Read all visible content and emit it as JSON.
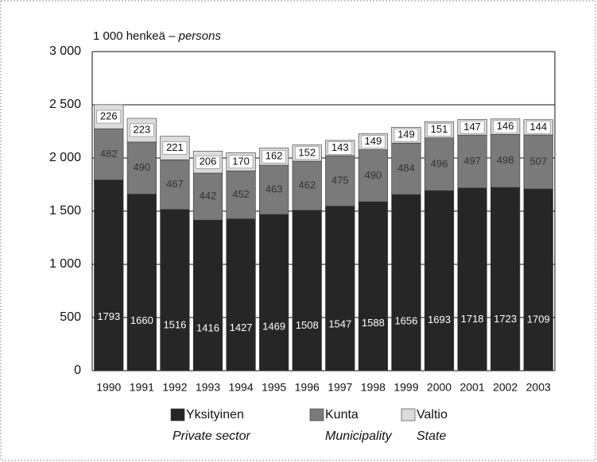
{
  "chart_data": {
    "type": "bar",
    "stacked": true,
    "unit_label": "1 000 henkeä –",
    "unit_label_en": "persons",
    "categories": [
      "1990",
      "1991",
      "1992",
      "1993",
      "1994",
      "1995",
      "1996",
      "1997",
      "1998",
      "1999",
      "2000",
      "2001",
      "2002",
      "2003"
    ],
    "series": [
      {
        "name": "Yksityinen",
        "name_en": "Private sector",
        "color": "#262626",
        "values": [
          1793,
          1660,
          1516,
          1416,
          1427,
          1469,
          1508,
          1547,
          1588,
          1656,
          1693,
          1718,
          1723,
          1709
        ]
      },
      {
        "name": "Kunta",
        "name_en": "Municipality",
        "color": "#7a7a7a",
        "values": [
          482,
          490,
          467,
          442,
          452,
          463,
          462,
          475,
          490,
          484,
          496,
          497,
          498,
          507
        ]
      },
      {
        "name": "Valtio",
        "name_en": "State",
        "color": "#dcdcdc",
        "values": [
          226,
          223,
          221,
          206,
          170,
          162,
          152,
          143,
          149,
          149,
          151,
          147,
          146,
          144
        ]
      }
    ],
    "ylim": [
      0,
      3000
    ],
    "yticks": [
      0,
      500,
      {
        "value": 1000,
        "label": "1 000"
      },
      {
        "value": 1500,
        "label": "1 500"
      },
      {
        "value": 2000,
        "label": "2 000"
      },
      {
        "value": 2500,
        "label": "2 500"
      },
      {
        "value": 3000,
        "label": "3 000"
      }
    ],
    "grid": true
  }
}
